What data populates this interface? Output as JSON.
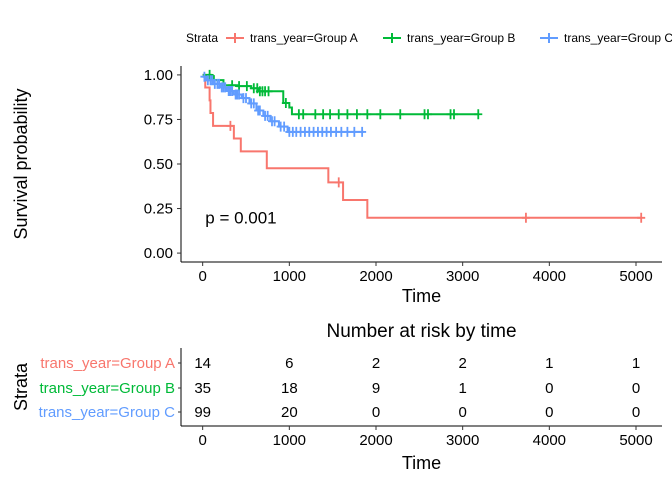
{
  "chart_data": [
    {
      "type": "line",
      "subtype": "kaplan-meier",
      "title": "",
      "xlabel": "Time",
      "ylabel": "Survival probability",
      "xlim": [
        -250,
        5300
      ],
      "ylim": [
        -0.05,
        1.05
      ],
      "xticks": [
        "0",
        "1000",
        "2000",
        "3000",
        "4000",
        "5000"
      ],
      "yticks": [
        "0.00",
        "0.25",
        "0.50",
        "0.75",
        "1.00"
      ],
      "grid": false,
      "legend": {
        "title": "Strata",
        "position": "top"
      },
      "annotation": "p = 0.001",
      "annotation_at": {
        "x": 30,
        "y": 0.2
      },
      "series": [
        {
          "name": "trans_year=Group A",
          "color": "#F8766D",
          "steps": [
            [
              0,
              1.0
            ],
            [
              30,
              0.929
            ],
            [
              80,
              0.857
            ],
            [
              90,
              0.786
            ],
            [
              120,
              0.714
            ],
            [
              360,
              0.643
            ],
            [
              440,
              0.571
            ],
            [
              740,
              0.476
            ],
            [
              1450,
              0.397
            ],
            [
              1620,
              0.298
            ],
            [
              1900,
              0.198
            ],
            [
              5060,
              0.198
            ]
          ],
          "censored": [
            [
              320,
              0.714
            ],
            [
              1570,
              0.397
            ],
            [
              3730,
              0.198
            ],
            [
              5060,
              0.198
            ]
          ]
        },
        {
          "name": "trans_year=Group B",
          "color": "#00BA38",
          "steps": [
            [
              0,
              1.0
            ],
            [
              100,
              0.971
            ],
            [
              240,
              0.942
            ],
            [
              400,
              0.937
            ],
            [
              560,
              0.925
            ],
            [
              650,
              0.908
            ],
            [
              930,
              0.842
            ],
            [
              1000,
              0.817
            ],
            [
              1030,
              0.779
            ],
            [
              3180,
              0.779
            ]
          ],
          "censored": [
            [
              80,
              1.0
            ],
            [
              130,
              0.971
            ],
            [
              340,
              0.942
            ],
            [
              420,
              0.937
            ],
            [
              510,
              0.937
            ],
            [
              590,
              0.925
            ],
            [
              630,
              0.925
            ],
            [
              660,
              0.908
            ],
            [
              690,
              0.908
            ],
            [
              720,
              0.908
            ],
            [
              760,
              0.908
            ],
            [
              960,
              0.842
            ],
            [
              1110,
              0.779
            ],
            [
              1160,
              0.779
            ],
            [
              1300,
              0.779
            ],
            [
              1390,
              0.779
            ],
            [
              1470,
              0.779
            ],
            [
              1570,
              0.779
            ],
            [
              1670,
              0.779
            ],
            [
              1780,
              0.779
            ],
            [
              1900,
              0.779
            ],
            [
              2050,
              0.779
            ],
            [
              2280,
              0.779
            ],
            [
              2560,
              0.779
            ],
            [
              2600,
              0.779
            ],
            [
              2860,
              0.779
            ],
            [
              2900,
              0.779
            ],
            [
              3180,
              0.779
            ]
          ]
        },
        {
          "name": "trans_year=Group C",
          "color": "#619CFF",
          "steps": [
            [
              0,
              0.99
            ],
            [
              40,
              0.97
            ],
            [
              120,
              0.95
            ],
            [
              200,
              0.93
            ],
            [
              280,
              0.91
            ],
            [
              360,
              0.89
            ],
            [
              450,
              0.87
            ],
            [
              540,
              0.84
            ],
            [
              620,
              0.8
            ],
            [
              700,
              0.77
            ],
            [
              780,
              0.74
            ],
            [
              880,
              0.71
            ],
            [
              980,
              0.68
            ],
            [
              1860,
              0.68
            ]
          ],
          "censored": [
            [
              20,
              0.99
            ],
            [
              60,
              0.97
            ],
            [
              90,
              0.97
            ],
            [
              110,
              0.97
            ],
            [
              140,
              0.95
            ],
            [
              170,
              0.95
            ],
            [
              190,
              0.95
            ],
            [
              220,
              0.93
            ],
            [
              240,
              0.93
            ],
            [
              260,
              0.93
            ],
            [
              300,
              0.91
            ],
            [
              320,
              0.91
            ],
            [
              340,
              0.91
            ],
            [
              380,
              0.89
            ],
            [
              400,
              0.89
            ],
            [
              420,
              0.89
            ],
            [
              470,
              0.87
            ],
            [
              500,
              0.87
            ],
            [
              560,
              0.84
            ],
            [
              590,
              0.84
            ],
            [
              640,
              0.8
            ],
            [
              660,
              0.8
            ],
            [
              720,
              0.77
            ],
            [
              750,
              0.77
            ],
            [
              800,
              0.74
            ],
            [
              830,
              0.74
            ],
            [
              900,
              0.71
            ],
            [
              940,
              0.71
            ],
            [
              1000,
              0.68
            ],
            [
              1040,
              0.68
            ],
            [
              1080,
              0.68
            ],
            [
              1130,
              0.68
            ],
            [
              1180,
              0.68
            ],
            [
              1230,
              0.68
            ],
            [
              1280,
              0.68
            ],
            [
              1330,
              0.68
            ],
            [
              1380,
              0.68
            ],
            [
              1430,
              0.68
            ],
            [
              1480,
              0.68
            ],
            [
              1540,
              0.68
            ],
            [
              1600,
              0.68
            ],
            [
              1670,
              0.68
            ],
            [
              1750,
              0.68
            ],
            [
              1840,
              0.68
            ]
          ]
        }
      ]
    },
    {
      "type": "table",
      "title": "Number at risk by time",
      "xlabel": "Time",
      "ylabel": "Strata",
      "xlim": [
        -250,
        5300
      ],
      "xticks": [
        "0",
        "1000",
        "2000",
        "3000",
        "4000",
        "5000"
      ],
      "times": [
        0,
        1000,
        2000,
        3000,
        4000,
        5000
      ],
      "rows": [
        {
          "label": "trans_year=Group A",
          "color": "#F8766D",
          "values": [
            "14",
            "6",
            "2",
            "2",
            "1",
            "1"
          ]
        },
        {
          "label": "trans_year=Group B",
          "color": "#00BA38",
          "values": [
            "35",
            "18",
            "9",
            "1",
            "0",
            "0"
          ]
        },
        {
          "label": "trans_year=Group C",
          "color": "#619CFF",
          "values": [
            "99",
            "20",
            "0",
            "0",
            "0",
            "0"
          ]
        }
      ]
    }
  ]
}
